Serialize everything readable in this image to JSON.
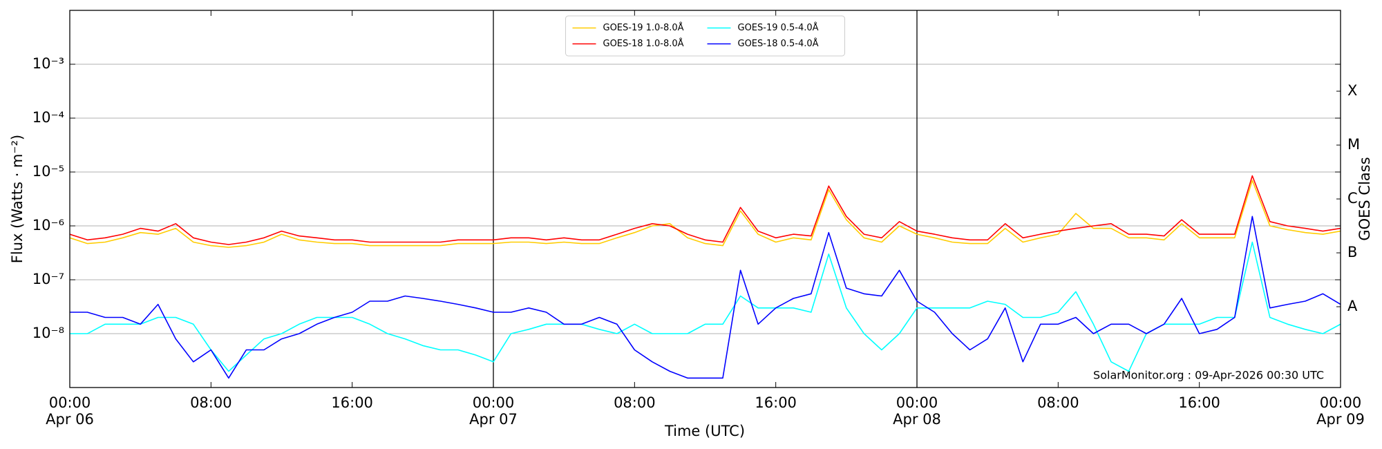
{
  "chart_data": {
    "type": "line",
    "xlabel": "Time (UTC)",
    "ylabel": "Flux (Watts · m⁻²)",
    "y2label": "GOES Class",
    "annotation": "SolarMonitor.org : 09-Apr-2026 00:30 UTC",
    "log_y": true,
    "grid": true,
    "legend": "upper center",
    "legend_columns": 2,
    "xlim": [
      0,
      72
    ],
    "xticks": [
      {
        "value": 0,
        "label": "00:00\nApr 06"
      },
      {
        "value": 8,
        "label": "08:00"
      },
      {
        "value": 16,
        "label": "16:00"
      },
      {
        "value": 24,
        "label": "00:00\nApr 07"
      },
      {
        "value": 32,
        "label": "08:00"
      },
      {
        "value": 40,
        "label": "16:00"
      },
      {
        "value": 48,
        "label": "00:00\nApr 08"
      },
      {
        "value": 56,
        "label": "08:00"
      },
      {
        "value": 64,
        "label": "16:00"
      },
      {
        "value": 72,
        "label": "00:00\nApr 09"
      }
    ],
    "vlines": [
      24,
      48
    ],
    "ylim": [
      1e-09,
      0.01
    ],
    "yticks": [
      {
        "value": 1e-08,
        "label": "10⁻⁸"
      },
      {
        "value": 1e-07,
        "label": "10⁻⁷"
      },
      {
        "value": 1e-06,
        "label": "10⁻⁶"
      },
      {
        "value": 1e-05,
        "label": "10⁻⁵"
      },
      {
        "value": 0.0001,
        "label": "10⁻⁴"
      },
      {
        "value": 0.001,
        "label": "10⁻³"
      }
    ],
    "y2lim": [
      1e-09,
      0.01
    ],
    "y2ticks": [
      {
        "value": 3.16e-08,
        "label": "A"
      },
      {
        "value": 3.16e-07,
        "label": "B"
      },
      {
        "value": 3.16e-06,
        "label": "C"
      },
      {
        "value": 3.16e-05,
        "label": "M"
      },
      {
        "value": 0.000316,
        "label": "X"
      }
    ],
    "x": [
      0,
      1,
      2,
      3,
      4,
      5,
      6,
      7,
      8,
      9,
      10,
      11,
      12,
      13,
      14,
      15,
      16,
      17,
      18,
      19,
      20,
      21,
      22,
      23,
      24,
      25,
      26,
      27,
      28,
      29,
      30,
      31,
      32,
      33,
      34,
      35,
      36,
      37,
      38,
      39,
      40,
      41,
      42,
      43,
      44,
      45,
      46,
      47,
      48,
      49,
      50,
      51,
      52,
      53,
      54,
      55,
      56,
      57,
      58,
      59,
      60,
      61,
      62,
      63,
      64,
      65,
      66,
      67,
      68,
      69,
      70,
      71,
      72
    ],
    "series": [
      {
        "name": "GOES-19 1.0-8.0Å",
        "color": "#ffcc00",
        "values": [
          6e-07,
          4.7e-07,
          5e-07,
          6e-07,
          7.5e-07,
          7e-07,
          9e-07,
          5e-07,
          4.3e-07,
          4e-07,
          4.3e-07,
          5e-07,
          7e-07,
          5.5e-07,
          5e-07,
          4.7e-07,
          4.7e-07,
          4.3e-07,
          4.3e-07,
          4.3e-07,
          4.3e-07,
          4.3e-07,
          4.7e-07,
          4.7e-07,
          4.7e-07,
          5e-07,
          5e-07,
          4.7e-07,
          5e-07,
          4.7e-07,
          4.7e-07,
          6e-07,
          7.5e-07,
          1e-06,
          1.1e-06,
          6e-07,
          4.7e-07,
          4.3e-07,
          1.9e-06,
          7e-07,
          5e-07,
          6e-07,
          5.5e-07,
          4.7e-06,
          1.3e-06,
          6e-07,
          5e-07,
          1e-06,
          7e-07,
          6e-07,
          5e-07,
          4.7e-07,
          4.7e-07,
          9e-07,
          5e-07,
          6e-07,
          7e-07,
          1.7e-06,
          9e-07,
          9e-07,
          6e-07,
          6e-07,
          5.5e-07,
          1.1e-06,
          6e-07,
          6e-07,
          6e-07,
          7e-06,
          1e-06,
          8.5e-07,
          7.5e-07,
          7e-07,
          8e-07
        ]
      },
      {
        "name": "GOES-18 1.0-8.0Å",
        "color": "#ff0000",
        "values": [
          7e-07,
          5.5e-07,
          6e-07,
          7e-07,
          9e-07,
          8e-07,
          1.1e-06,
          6e-07,
          5e-07,
          4.5e-07,
          5e-07,
          6e-07,
          8e-07,
          6.5e-07,
          6e-07,
          5.5e-07,
          5.5e-07,
          5e-07,
          5e-07,
          5e-07,
          5e-07,
          5e-07,
          5.5e-07,
          5.5e-07,
          5.5e-07,
          6e-07,
          6e-07,
          5.5e-07,
          6e-07,
          5.5e-07,
          5.5e-07,
          7e-07,
          9e-07,
          1.1e-06,
          1e-06,
          7e-07,
          5.5e-07,
          5e-07,
          2.2e-06,
          8e-07,
          6e-07,
          7e-07,
          6.5e-07,
          5.5e-06,
          1.5e-06,
          7e-07,
          6e-07,
          1.2e-06,
          8e-07,
          7e-07,
          6e-07,
          5.5e-07,
          5.5e-07,
          1.1e-06,
          6e-07,
          7e-07,
          8e-07,
          9e-07,
          1e-06,
          1.1e-06,
          7e-07,
          7e-07,
          6.5e-07,
          1.3e-06,
          7e-07,
          7e-07,
          7e-07,
          8.5e-06,
          1.2e-06,
          1e-06,
          9e-07,
          8e-07,
          9e-07
        ]
      },
      {
        "name": "GOES-19 0.5-4.0Å",
        "color": "#00ffff",
        "values": [
          1e-08,
          1e-08,
          1.5e-08,
          1.5e-08,
          1.5e-08,
          2e-08,
          2e-08,
          1.5e-08,
          5e-09,
          2e-09,
          4e-09,
          8e-09,
          1e-08,
          1.5e-08,
          2e-08,
          2e-08,
          2e-08,
          1.5e-08,
          1e-08,
          8e-09,
          6e-09,
          5e-09,
          5e-09,
          4e-09,
          3e-09,
          1e-08,
          1.2e-08,
          1.5e-08,
          1.5e-08,
          1.5e-08,
          1.2e-08,
          1e-08,
          1.5e-08,
          1e-08,
          1e-08,
          1e-08,
          1.5e-08,
          1.5e-08,
          5e-08,
          3e-08,
          3e-08,
          3e-08,
          2.5e-08,
          3e-07,
          3e-08,
          1e-08,
          5e-09,
          1e-08,
          3e-08,
          3e-08,
          3e-08,
          3e-08,
          4e-08,
          3.5e-08,
          2e-08,
          2e-08,
          2.5e-08,
          6e-08,
          1.5e-08,
          3e-09,
          2e-09,
          1e-08,
          1.5e-08,
          1.5e-08,
          1.5e-08,
          2e-08,
          2e-08,
          5e-07,
          2e-08,
          1.5e-08,
          1.2e-08,
          1e-08,
          1.5e-08
        ]
      },
      {
        "name": "GOES-18 0.5-4.0Å",
        "color": "#0000ff",
        "values": [
          2.5e-08,
          2.5e-08,
          2e-08,
          2e-08,
          1.5e-08,
          3.5e-08,
          8e-09,
          3e-09,
          5e-09,
          1.5e-09,
          5e-09,
          5e-09,
          8e-09,
          1e-08,
          1.5e-08,
          2e-08,
          2.5e-08,
          4e-08,
          4e-08,
          5e-08,
          4.5e-08,
          4e-08,
          3.5e-08,
          3e-08,
          2.5e-08,
          2.5e-08,
          3e-08,
          2.5e-08,
          1.5e-08,
          1.5e-08,
          2e-08,
          1.5e-08,
          5e-09,
          3e-09,
          2e-09,
          1.5e-09,
          1.5e-09,
          1.5e-09,
          1.5e-07,
          1.5e-08,
          3e-08,
          4.5e-08,
          5.5e-08,
          7.5e-07,
          7e-08,
          5.5e-08,
          5e-08,
          1.5e-07,
          4e-08,
          2.5e-08,
          1e-08,
          5e-09,
          8e-09,
          3e-08,
          3e-09,
          1.5e-08,
          1.5e-08,
          2e-08,
          1e-08,
          1.5e-08,
          1.5e-08,
          1e-08,
          1.5e-08,
          4.5e-08,
          1e-08,
          1.2e-08,
          2e-08,
          1.5e-06,
          3e-08,
          3.5e-08,
          4e-08,
          5.5e-08,
          3.5e-08
        ]
      }
    ]
  }
}
